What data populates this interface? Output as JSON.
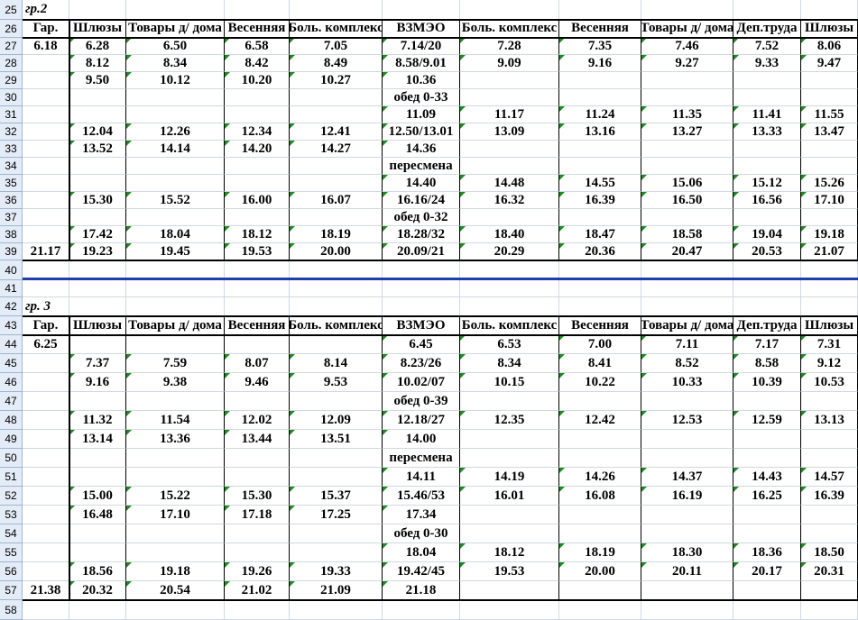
{
  "sheet": {
    "rows": [
      {
        "num": 25,
        "cells": [
          "гр.2",
          null,
          null,
          null,
          null,
          null,
          null,
          null,
          null,
          null,
          null
        ]
      },
      {
        "num": 26,
        "cells": [
          "Гар.",
          "Шлюзы",
          "Товары д/ дома",
          "Весенняя",
          "Боль. комплекс",
          "ВЗМЭО",
          "Боль. комплекс",
          "Весенняя",
          "Товары д/ дома",
          "Деп.труда",
          "Шлюзы"
        ]
      },
      {
        "num": 27,
        "cells": [
          "6.18",
          "6.28",
          "6.50",
          "6.58",
          "7.05",
          "7.14/20",
          "7.28",
          "7.35",
          "7.46",
          "7.52",
          "8.06"
        ]
      },
      {
        "num": 28,
        "cells": [
          null,
          "8.12",
          "8.34",
          "8.42",
          "8.49",
          "8.58/9.01",
          "9.09",
          "9.16",
          "9.27",
          "9.33",
          "9.47"
        ]
      },
      {
        "num": 29,
        "cells": [
          null,
          "9.50",
          "10.12",
          "10.20",
          "10.27",
          "10.36",
          null,
          null,
          null,
          null,
          null
        ]
      },
      {
        "num": 30,
        "cells": [
          null,
          null,
          null,
          null,
          null,
          "обед 0-33",
          null,
          null,
          null,
          null,
          null
        ]
      },
      {
        "num": 31,
        "cells": [
          null,
          null,
          null,
          null,
          null,
          "11.09",
          "11.17",
          "11.24",
          "11.35",
          "11.41",
          "11.55"
        ]
      },
      {
        "num": 32,
        "cells": [
          null,
          "12.04",
          "12.26",
          "12.34",
          "12.41",
          "12.50/13.01",
          "13.09",
          "13.16",
          "13.27",
          "13.33",
          "13.47"
        ]
      },
      {
        "num": 33,
        "cells": [
          null,
          "13.52",
          "14.14",
          "14.20",
          "14.27",
          "14.36",
          null,
          null,
          null,
          null,
          null
        ]
      },
      {
        "num": 34,
        "cells": [
          null,
          null,
          null,
          null,
          null,
          "пересмена",
          null,
          null,
          null,
          null,
          null
        ]
      },
      {
        "num": 35,
        "cells": [
          null,
          null,
          null,
          null,
          null,
          "14.40",
          "14.48",
          "14.55",
          "15.06",
          "15.12",
          "15.26"
        ]
      },
      {
        "num": 36,
        "cells": [
          null,
          "15.30",
          "15.52",
          "16.00",
          "16.07",
          "16.16/24",
          "16.32",
          "16.39",
          "16.50",
          "16.56",
          "17.10"
        ]
      },
      {
        "num": 37,
        "cells": [
          null,
          null,
          null,
          null,
          null,
          "обед 0-32",
          null,
          null,
          null,
          null,
          null
        ]
      },
      {
        "num": 38,
        "cells": [
          null,
          "17.42",
          "18.04",
          "18.12",
          "18.19",
          "18.28/32",
          "18.40",
          "18.47",
          "18.58",
          "19.04",
          "19.18"
        ]
      },
      {
        "num": 39,
        "cells": [
          "21.17",
          "19.23",
          "19.45",
          "19.53",
          "20.00",
          "20.09/21",
          "20.29",
          "20.36",
          "20.47",
          "20.53",
          "21.07"
        ]
      },
      {
        "num": 40,
        "cells": [
          null,
          null,
          null,
          null,
          null,
          null,
          null,
          null,
          null,
          null,
          null
        ]
      },
      {
        "num": 41,
        "cells": [
          null,
          null,
          null,
          null,
          null,
          null,
          null,
          null,
          null,
          null,
          null
        ]
      },
      {
        "num": 42,
        "cells": [
          "гр. 3",
          null,
          null,
          null,
          null,
          null,
          null,
          null,
          null,
          null,
          null
        ]
      },
      {
        "num": 43,
        "cells": [
          "Гар.",
          "Шлюзы",
          "Товары д/ дома",
          "Весенняя",
          "Боль. комплекс",
          "ВЗМЭО",
          "Боль. комплекс",
          "Весенняя",
          "Товары д/ дома",
          "Деп.труда",
          "Шлюзы"
        ]
      },
      {
        "num": 44,
        "cells": [
          "6.25",
          null,
          null,
          null,
          null,
          "6.45",
          "6.53",
          "7.00",
          "7.11",
          "7.17",
          "7.31"
        ]
      },
      {
        "num": 45,
        "cells": [
          null,
          "7.37",
          "7.59",
          "8.07",
          "8.14",
          "8.23/26",
          "8.34",
          "8.41",
          "8.52",
          "8.58",
          "9.12"
        ]
      },
      {
        "num": 46,
        "cells": [
          null,
          "9.16",
          "9.38",
          "9.46",
          "9.53",
          "10.02/07",
          "10.15",
          "10.22",
          "10.33",
          "10.39",
          "10.53"
        ]
      },
      {
        "num": 47,
        "cells": [
          null,
          null,
          null,
          null,
          null,
          "обед 0-39",
          null,
          null,
          null,
          null,
          null
        ]
      },
      {
        "num": 48,
        "cells": [
          null,
          "11.32",
          "11.54",
          "12.02",
          "12.09",
          "12.18/27",
          "12.35",
          "12.42",
          "12.53",
          "12.59",
          "13.13"
        ]
      },
      {
        "num": 49,
        "cells": [
          null,
          "13.14",
          "13.36",
          "13.44",
          "13.51",
          "14.00",
          null,
          null,
          null,
          null,
          null
        ]
      },
      {
        "num": 50,
        "cells": [
          null,
          null,
          null,
          null,
          null,
          "пересмена",
          null,
          null,
          null,
          null,
          null
        ]
      },
      {
        "num": 51,
        "cells": [
          null,
          null,
          null,
          null,
          null,
          "14.11",
          "14.19",
          "14.26",
          "14.37",
          "14.43",
          "14.57"
        ]
      },
      {
        "num": 52,
        "cells": [
          null,
          "15.00",
          "15.22",
          "15.30",
          "15.37",
          "15.46/53",
          "16.01",
          "16.08",
          "16.19",
          "16.25",
          "16.39"
        ]
      },
      {
        "num": 53,
        "cells": [
          null,
          "16.48",
          "17.10",
          "17.18",
          "17.25",
          "17.34",
          null,
          null,
          null,
          null,
          null
        ]
      },
      {
        "num": 54,
        "cells": [
          null,
          null,
          null,
          null,
          null,
          "обед 0-30",
          null,
          null,
          null,
          null,
          null
        ]
      },
      {
        "num": 55,
        "cells": [
          null,
          null,
          null,
          null,
          null,
          "18.04",
          "18.12",
          "18.19",
          "18.30",
          "18.36",
          "18.50"
        ]
      },
      {
        "num": 56,
        "cells": [
          null,
          "18.56",
          "19.18",
          "19.26",
          "19.33",
          "19.42/45",
          "19.53",
          "20.00",
          "20.11",
          "20.17",
          "20.31"
        ]
      },
      {
        "num": 57,
        "cells": [
          "21.38",
          "20.32",
          "20.54",
          "21.02",
          "21.09",
          "21.18",
          null,
          null,
          null,
          null,
          null
        ]
      },
      {
        "num": 58,
        "cells": [
          null,
          null,
          null,
          null,
          null,
          null,
          null,
          null,
          null,
          null,
          null
        ]
      }
    ]
  }
}
